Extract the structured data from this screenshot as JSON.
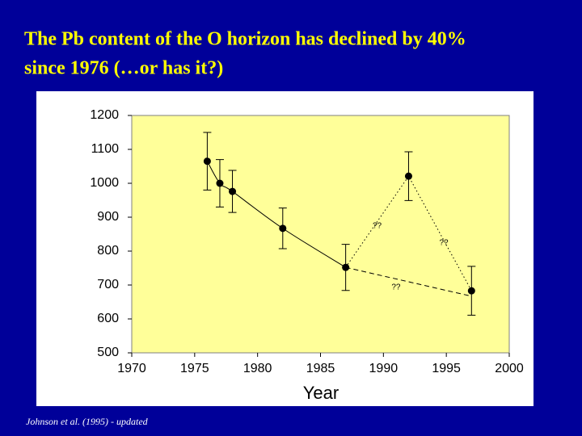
{
  "chart_data": {
    "type": "line",
    "title": [
      "The Pb content of the O horizon has declined by 40%",
      "since 1976 (…or has it?)"
    ],
    "x_label": "Year",
    "footnote": "Johnson et al. (1995) - updated",
    "x": [
      1976,
      1977,
      1978,
      1982,
      1987,
      1992,
      1997
    ],
    "series": [
      {
        "color": "#000000",
        "values": [
          1065,
          1000,
          976,
          867,
          752,
          1021,
          683
        ],
        "errors": [
          85,
          70,
          62,
          60,
          68,
          72,
          72
        ]
      }
    ],
    "lines": [
      {
        "style": "solid",
        "x": [
          1976,
          1977,
          1978,
          1982,
          1987
        ],
        "values": [
          1065,
          1000,
          976,
          867,
          752
        ]
      },
      {
        "style": "dotted",
        "x": [
          1987,
          1992,
          1997
        ],
        "values": [
          752,
          1021,
          683
        ]
      },
      {
        "style": "dashed",
        "x": [
          1987,
          1997
        ],
        "values": [
          752,
          667
        ]
      }
    ],
    "annotations": [
      {
        "text": "??",
        "x": 1989.5,
        "y": 874
      },
      {
        "text": "??",
        "x": 1994.8,
        "y": 824
      },
      {
        "text": "??",
        "x": 1991,
        "y": 693
      }
    ],
    "xlim": [
      1970,
      2000
    ],
    "xticks": [
      1970,
      1975,
      1980,
      1985,
      1990,
      1995,
      2000
    ],
    "ylim": [
      500,
      1200
    ],
    "yticks": [
      500,
      600,
      700,
      800,
      900,
      1000,
      1100,
      1200
    ],
    "plot_color": "#ffff99"
  }
}
